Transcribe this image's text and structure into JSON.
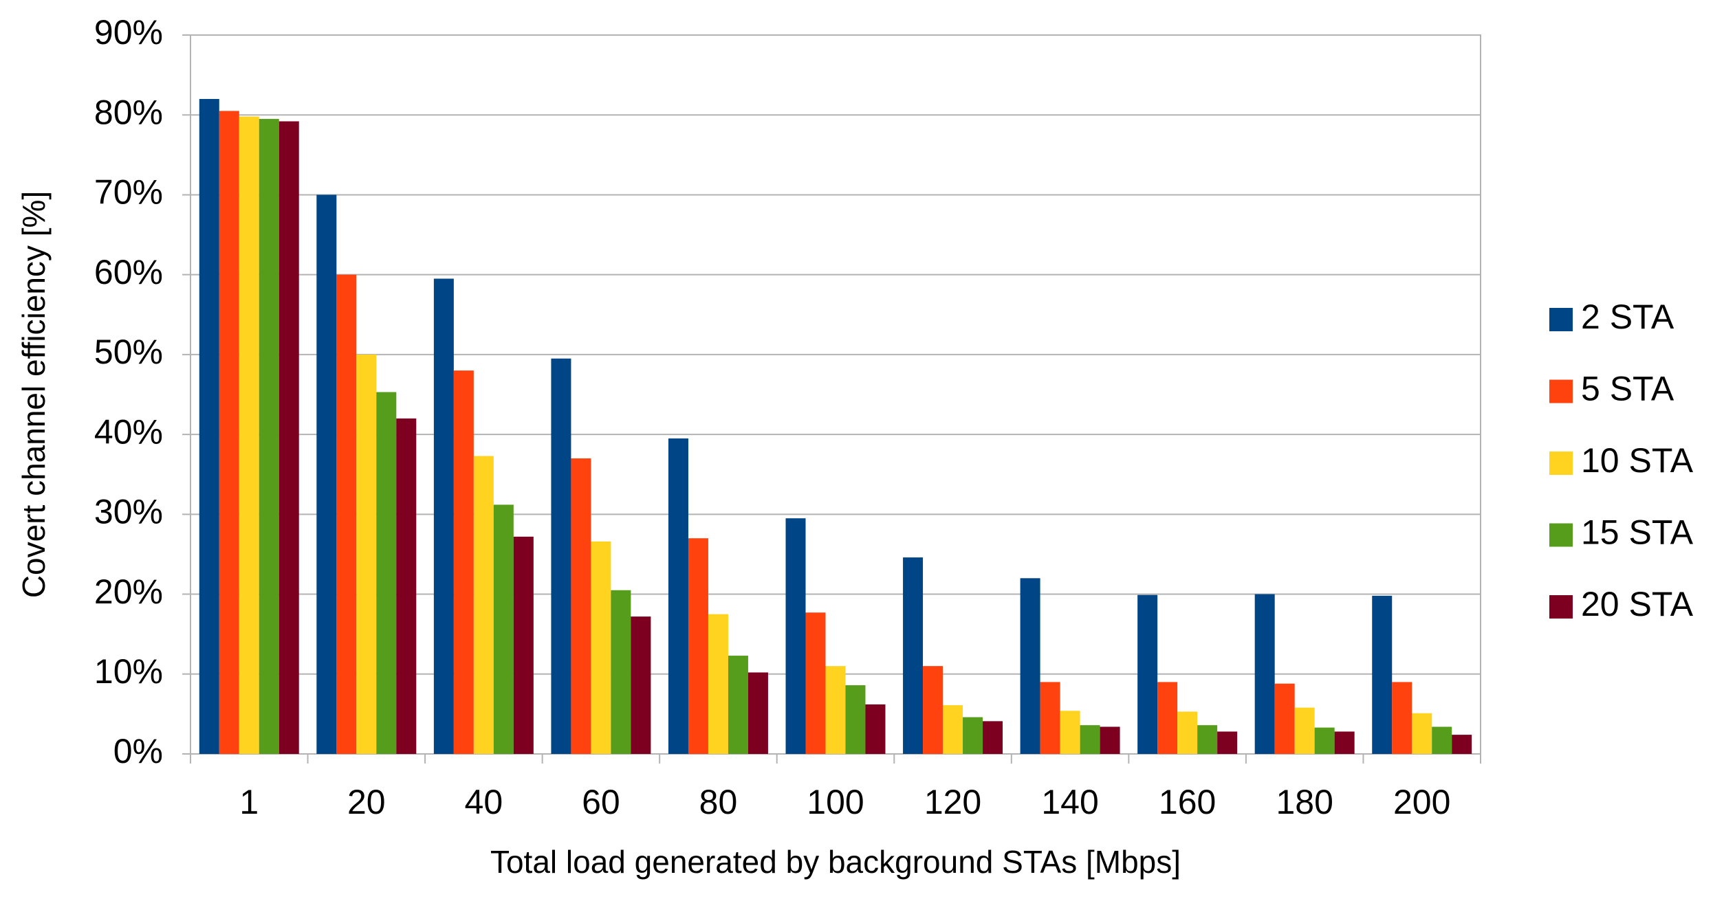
{
  "chart_data": {
    "type": "bar",
    "x_label": "Total load generated by background STAs [Mbps]",
    "y_label": "Covert channel efficiency [%]",
    "categories": [
      "1",
      "20",
      "40",
      "60",
      "80",
      "100",
      "120",
      "140",
      "160",
      "180",
      "200"
    ],
    "series": [
      {
        "name": "2 STA",
        "color": "#004586",
        "values": [
          82,
          70,
          59.5,
          49.5,
          39.5,
          29.5,
          24.6,
          22,
          19.9,
          20,
          19.8
        ]
      },
      {
        "name": "5 STA",
        "color": "#ff420e",
        "values": [
          80.5,
          60,
          48,
          37,
          27,
          17.7,
          11,
          9,
          9,
          8.8,
          9
        ]
      },
      {
        "name": "10 STA",
        "color": "#ffd320",
        "values": [
          79.8,
          50,
          37.3,
          26.6,
          17.5,
          11,
          6.1,
          5.4,
          5.3,
          5.8,
          5.1
        ]
      },
      {
        "name": "15 STA",
        "color": "#579d1c",
        "values": [
          79.5,
          45.3,
          31.2,
          20.5,
          12.3,
          8.6,
          4.6,
          3.6,
          3.6,
          3.3,
          3.4
        ]
      },
      {
        "name": "20 STA",
        "color": "#7e0021",
        "values": [
          79.2,
          42,
          27.2,
          17.2,
          10.2,
          6.2,
          4.1,
          3.4,
          2.8,
          2.8,
          2.4
        ]
      }
    ],
    "ylim": [
      0,
      90
    ],
    "yticks": [
      {
        "value": 0,
        "label": "0%"
      },
      {
        "value": 10,
        "label": "10%"
      },
      {
        "value": 20,
        "label": "20%"
      },
      {
        "value": 30,
        "label": "30%"
      },
      {
        "value": 40,
        "label": "40%"
      },
      {
        "value": 50,
        "label": "50%"
      },
      {
        "value": 60,
        "label": "60%"
      },
      {
        "value": 70,
        "label": "70%"
      },
      {
        "value": 80,
        "label": "80%"
      },
      {
        "value": 90,
        "label": "90%"
      }
    ],
    "grid": true,
    "legend": "right"
  }
}
